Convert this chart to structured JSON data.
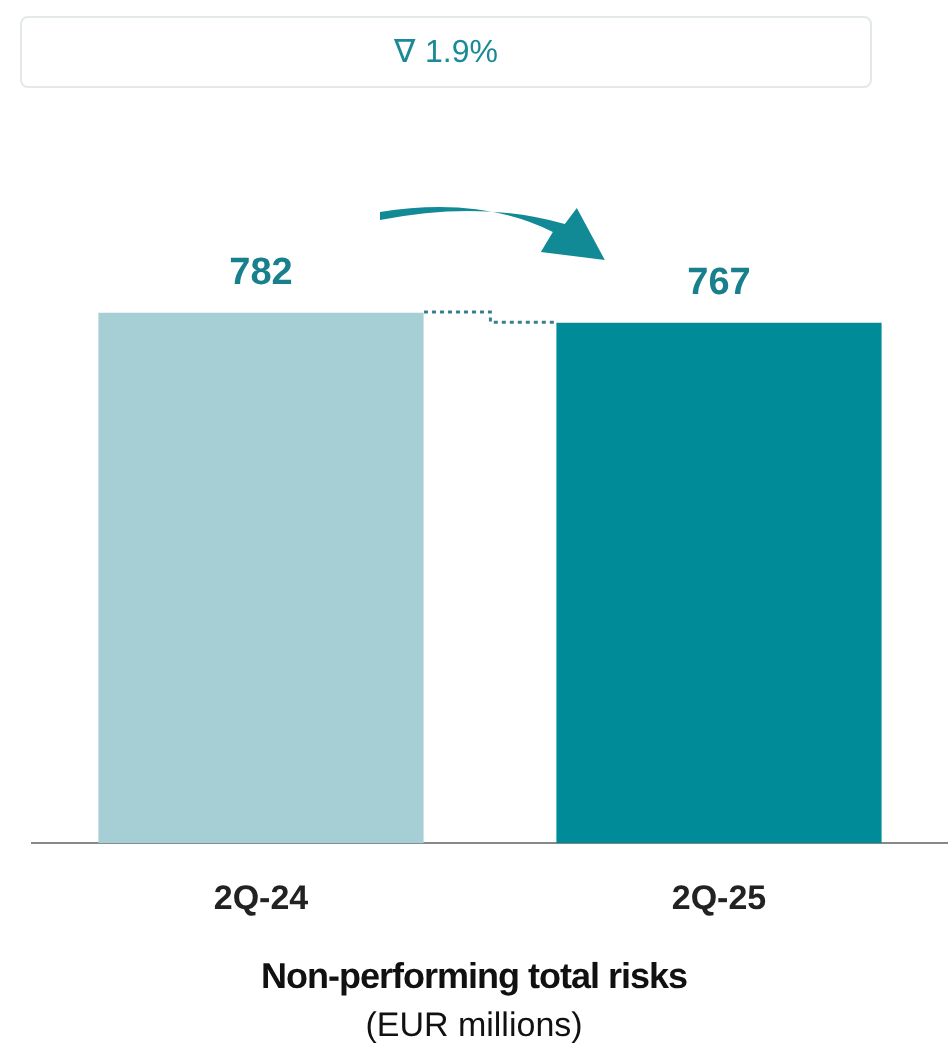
{
  "chart_data": {
    "type": "bar",
    "title": "Non-performing total risks",
    "subtitle": "(EUR millions)",
    "categories": [
      "2Q-24",
      "2Q-25"
    ],
    "values": [
      782,
      767
    ],
    "colors": [
      "#a6cfd5",
      "#008b99"
    ],
    "data_labels": true,
    "annotations": [
      "∇ 1.9%"
    ],
    "grid": false,
    "legend": false,
    "tick_labels": "x"
  }
}
